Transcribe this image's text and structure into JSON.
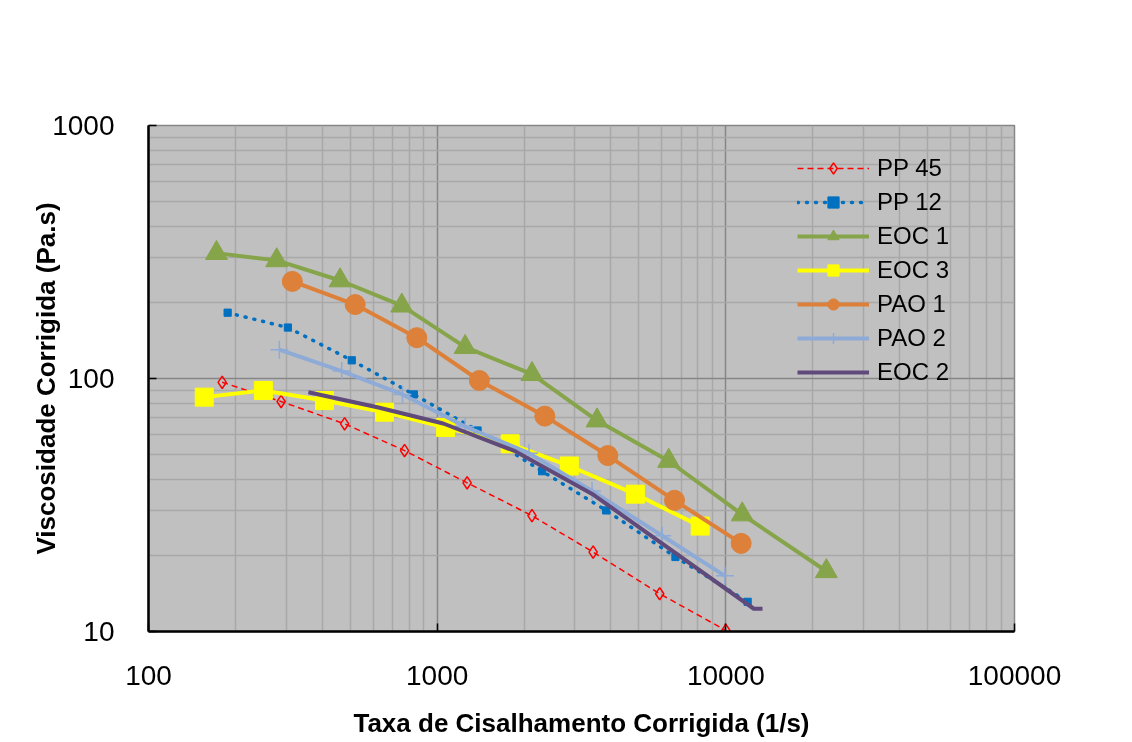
{
  "chart_data": {
    "type": "line",
    "xlabel": "Taxa de Cisalhamento Corrigida (1/s)",
    "ylabel": "Viscosidade Corrigida (Pa.s)",
    "log": "xy",
    "xlim": [
      100,
      100000
    ],
    "ylim": [
      10,
      1000
    ],
    "xticks": [
      100,
      1000,
      10000,
      100000
    ],
    "yticks": [
      10,
      100,
      1000
    ],
    "grid": true,
    "legend": "top right",
    "series": [
      {
        "name": "PP 45",
        "color": "#ff0000",
        "line_style": "dashed",
        "marker": "diamond",
        "x": [
          180,
          288,
          478,
          771,
          1270,
          2130,
          3470,
          5900,
          10000
        ],
        "values": [
          96.6,
          81.1,
          66.2,
          51.9,
          38.7,
          28.7,
          20.6,
          14.1,
          10.1
        ]
      },
      {
        "name": "PP 12",
        "color": "#0070c0",
        "line_style": "dotted",
        "marker": "square",
        "x": [
          188,
          304,
          506,
          830,
          1380,
          2310,
          3850,
          6690,
          11900
        ],
        "values": [
          182,
          159,
          118,
          86.5,
          62.3,
          43.0,
          30.1,
          19.7,
          13.1
        ]
      },
      {
        "name": "EOC 1",
        "color": "#86a44a",
        "line_style": "solid",
        "marker": "triangle",
        "x": [
          172,
          278,
          461,
          754,
          1250,
          2130,
          3580,
          6340,
          11400,
          22300
        ],
        "values": [
          313,
          293,
          244,
          194,
          133,
          104,
          68.2,
          47.2,
          29.0,
          17.3
        ]
      },
      {
        "name": "EOC 3",
        "color": "#ffff00",
        "line_style": "solid",
        "marker": "square",
        "x": [
          156,
          250,
          407,
          657,
          1070,
          1790,
          2870,
          4860,
          8150
        ],
        "values": [
          84.4,
          89.7,
          81.8,
          73.6,
          64.0,
          55.2,
          45.1,
          34.9,
          26.1
        ]
      },
      {
        "name": "PAO 1",
        "color": "#dd8039",
        "line_style": "solid",
        "marker": "circle",
        "x": [
          315,
          520,
          850,
          1400,
          2360,
          3900,
          6640,
          11300
        ],
        "values": [
          242,
          196,
          145,
          98.2,
          71.0,
          49.6,
          33.0,
          22.3
        ]
      },
      {
        "name": "PAO 2",
        "color": "#8eaad7",
        "line_style": "solid",
        "marker": "cross",
        "x": [
          284,
          467,
          758,
          1250,
          2080,
          3440,
          6020,
          9930
        ],
        "values": [
          130,
          107,
          86.5,
          64.6,
          50.7,
          35.9,
          23.9,
          16.6
        ]
      },
      {
        "name": "EOC 2",
        "color": "#604a7b",
        "line_style": "solid",
        "marker": "none",
        "x": [
          358,
          626,
          1050,
          1870,
          3480,
          12500,
          13400
        ],
        "values": [
          88.3,
          76.8,
          66.4,
          51.5,
          34.7,
          12.3,
          12.3
        ]
      }
    ]
  }
}
